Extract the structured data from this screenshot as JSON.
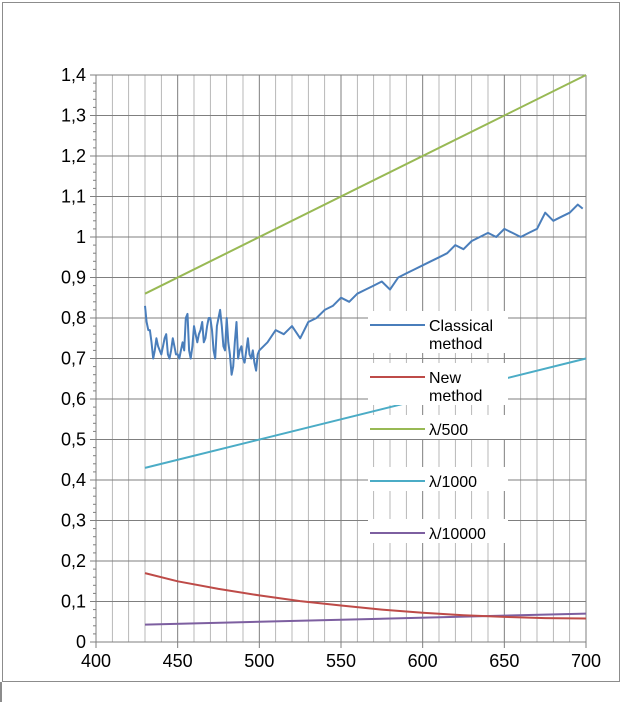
{
  "chart_data": {
    "type": "line",
    "title": "",
    "xlabel": "",
    "ylabel": "",
    "xlim": [
      400,
      700
    ],
    "ylim": [
      0,
      1.4
    ],
    "x_ticks": [
      "400",
      "450",
      "500",
      "550",
      "600",
      "650",
      "700"
    ],
    "y_ticks": [
      "0",
      "0,1",
      "0,2",
      "0,3",
      "0,4",
      "0,5",
      "0,6",
      "0,7",
      "0,8",
      "0,9",
      "1",
      "1,1",
      "1,2",
      "1,3",
      "1,4"
    ],
    "grid": true,
    "legend_position": "center-right",
    "series": [
      {
        "name": "Classical method",
        "legend_lines": [
          "Classical",
          "method"
        ],
        "color": "#4a7ebb",
        "x": [
          430,
          431,
          432,
          433,
          434,
          435,
          436,
          437,
          438,
          439,
          440,
          441,
          442,
          443,
          444,
          445,
          446,
          447,
          448,
          449,
          450,
          451,
          452,
          453,
          454,
          455,
          456,
          457,
          458,
          459,
          460,
          461,
          462,
          463,
          464,
          465,
          466,
          467,
          468,
          469,
          470,
          471,
          472,
          473,
          474,
          475,
          476,
          477,
          478,
          479,
          480,
          481,
          482,
          483,
          484,
          485,
          486,
          487,
          488,
          489,
          490,
          491,
          492,
          493,
          494,
          495,
          496,
          497,
          498,
          499,
          500,
          505,
          510,
          515,
          520,
          525,
          530,
          535,
          540,
          545,
          550,
          555,
          560,
          565,
          570,
          575,
          580,
          585,
          590,
          595,
          600,
          605,
          610,
          615,
          620,
          625,
          630,
          635,
          640,
          645,
          650,
          655,
          660,
          665,
          670,
          675,
          680,
          685,
          690,
          695,
          698
        ],
        "values": [
          0.83,
          0.79,
          0.77,
          0.77,
          0.74,
          0.7,
          0.72,
          0.75,
          0.73,
          0.72,
          0.71,
          0.73,
          0.75,
          0.76,
          0.71,
          0.7,
          0.72,
          0.75,
          0.73,
          0.71,
          0.71,
          0.7,
          0.72,
          0.74,
          0.72,
          0.8,
          0.81,
          0.72,
          0.7,
          0.73,
          0.78,
          0.76,
          0.74,
          0.76,
          0.77,
          0.79,
          0.74,
          0.75,
          0.78,
          0.8,
          0.8,
          0.77,
          0.72,
          0.7,
          0.78,
          0.8,
          0.82,
          0.78,
          0.73,
          0.72,
          0.8,
          0.74,
          0.71,
          0.66,
          0.68,
          0.74,
          0.79,
          0.7,
          0.72,
          0.73,
          0.7,
          0.69,
          0.72,
          0.75,
          0.71,
          0.7,
          0.72,
          0.69,
          0.67,
          0.71,
          0.72,
          0.74,
          0.77,
          0.76,
          0.78,
          0.75,
          0.79,
          0.8,
          0.82,
          0.83,
          0.85,
          0.84,
          0.86,
          0.87,
          0.88,
          0.89,
          0.87,
          0.9,
          0.91,
          0.92,
          0.93,
          0.94,
          0.95,
          0.96,
          0.98,
          0.97,
          0.99,
          1.0,
          1.01,
          1.0,
          1.02,
          1.01,
          1.0,
          1.01,
          1.02,
          1.06,
          1.04,
          1.05,
          1.06,
          1.08,
          1.07
        ]
      },
      {
        "name": "New method",
        "legend_lines": [
          "New",
          "method"
        ],
        "color": "#be4b48",
        "x": [
          430,
          450,
          475,
          500,
          525,
          550,
          575,
          600,
          625,
          650,
          675,
          700
        ],
        "values": [
          0.17,
          0.15,
          0.131,
          0.115,
          0.101,
          0.09,
          0.08,
          0.072,
          0.066,
          0.062,
          0.059,
          0.058
        ]
      },
      {
        "name": "λ/500",
        "legend_lines": [
          "λ/500"
        ],
        "color": "#98b954",
        "x": [
          430,
          700
        ],
        "values": [
          0.86,
          1.4
        ]
      },
      {
        "name": "λ/1000",
        "legend_lines": [
          "λ/1000"
        ],
        "color": "#4bacc6",
        "x": [
          430,
          700
        ],
        "values": [
          0.43,
          0.7
        ]
      },
      {
        "name": "λ/10000",
        "legend_lines": [
          "λ/10000"
        ],
        "color": "#7d5fa0",
        "x": [
          430,
          700
        ],
        "values": [
          0.043,
          0.07
        ]
      }
    ]
  }
}
